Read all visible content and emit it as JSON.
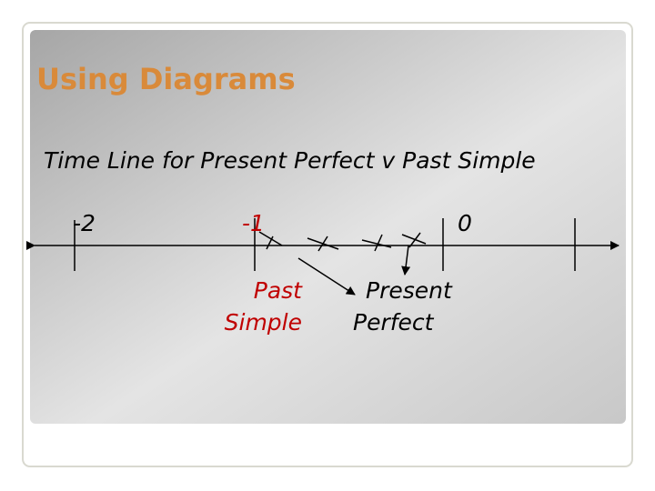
{
  "header": {
    "title": "Using Diagrams"
  },
  "body": {
    "heading": "Time Line for Present Perfect v Past Simple"
  },
  "timeline": {
    "labels": [
      "-2",
      "-1",
      "0"
    ]
  },
  "annotations": [
    {
      "lines": [
        "Past",
        "Simple"
      ]
    },
    {
      "lines": [
        "Present",
        "Perfect"
      ]
    }
  ]
}
